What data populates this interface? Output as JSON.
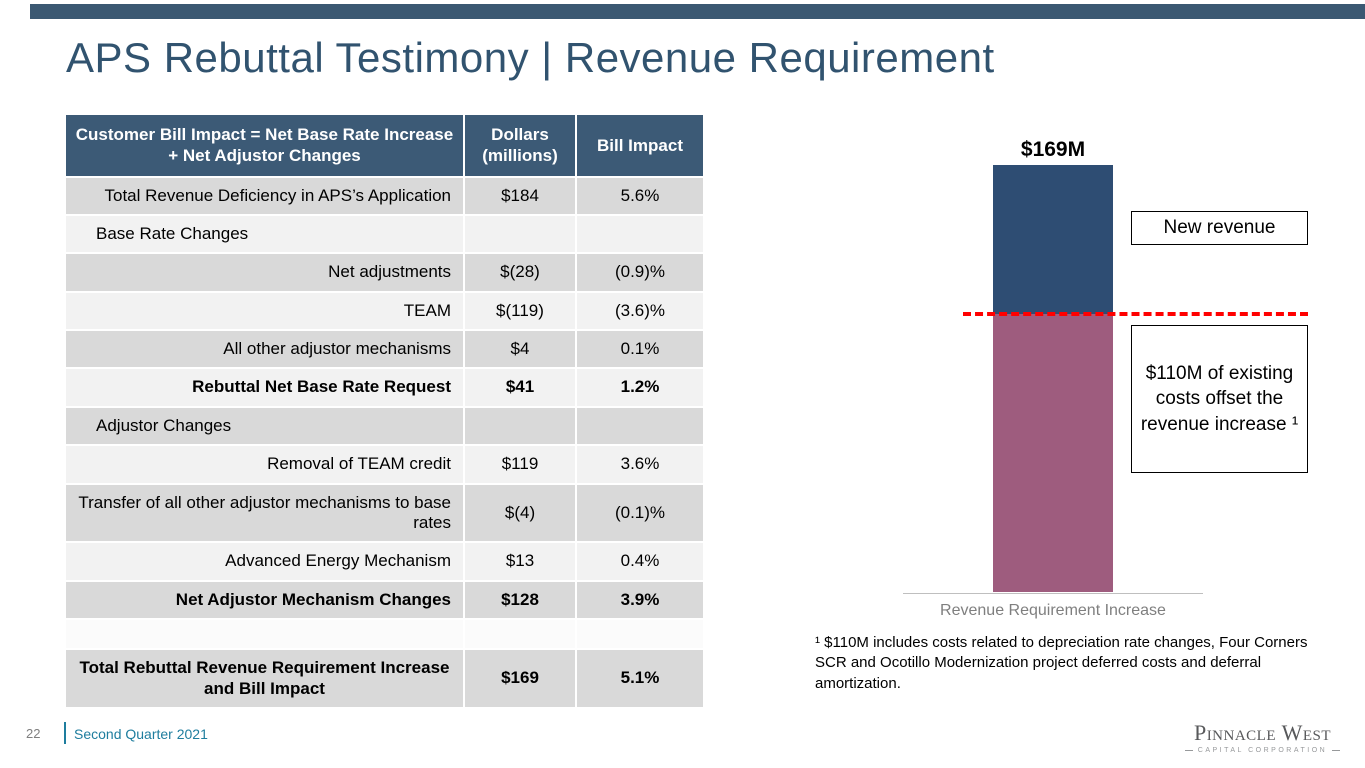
{
  "slide": {
    "title": "APS Rebuttal Testimony | Revenue Requirement"
  },
  "table": {
    "header": {
      "col1": "Customer Bill Impact = Net Base Rate Increase + Net Adjustor Changes",
      "col2": "Dollars (millions)",
      "col3": "Bill Impact"
    },
    "rows": [
      {
        "label": "Total Revenue Deficiency in APS’s Application",
        "dollars": "$184",
        "impact": "5.6%"
      },
      {
        "label": "Base Rate Changes",
        "dollars": "",
        "impact": ""
      },
      {
        "label": "Net adjustments",
        "dollars": "$(28)",
        "impact": "(0.9)%"
      },
      {
        "label": "TEAM",
        "dollars": "$(119)",
        "impact": "(3.6)%"
      },
      {
        "label": "All other adjustor mechanisms",
        "dollars": "$4",
        "impact": "0.1%"
      },
      {
        "label": "Rebuttal Net Base Rate Request",
        "dollars": "$41",
        "impact": "1.2%"
      },
      {
        "label": "Adjustor Changes",
        "dollars": "",
        "impact": ""
      },
      {
        "label": "Removal of TEAM credit",
        "dollars": "$119",
        "impact": "3.6%"
      },
      {
        "label": "Transfer of all other adjustor mechanisms to base rates",
        "dollars": "$(4)",
        "impact": "(0.1)%"
      },
      {
        "label": "Advanced Energy Mechanism",
        "dollars": "$13",
        "impact": "0.4%"
      },
      {
        "label": "Net Adjustor Mechanism Changes",
        "dollars": "$128",
        "impact": "3.9%"
      },
      {
        "label": "",
        "dollars": "",
        "impact": ""
      },
      {
        "label": "Total Rebuttal Revenue Requirement Increase and Bill Impact",
        "dollars": "$169",
        "impact": "5.1%"
      }
    ]
  },
  "chart": {
    "total_label": "$169M",
    "new_revenue_label": "New revenue",
    "existing_costs_label": "$110M of existing costs offset the revenue increase ¹",
    "axis_label": "Revenue Requirement Increase",
    "footnote": "¹ $110M includes costs related to depreciation rate changes, Four Corners SCR and Ocotillo Modernization project deferred costs and deferral amortization."
  },
  "chart_data": {
    "type": "bar",
    "stacked": true,
    "categories": [
      "Revenue Requirement Increase"
    ],
    "series": [
      {
        "name": "New revenue",
        "values": [
          59
        ],
        "color": "#2E4D73"
      },
      {
        "name": "$110M of existing costs offset the revenue increase",
        "values": [
          110
        ],
        "color": "#9E5C7E"
      }
    ],
    "total": 169,
    "total_label": "$169M",
    "ylim": [
      0,
      169
    ],
    "annotations": [
      "$169M",
      "New revenue",
      "$110M of existing costs offset the revenue increase ¹"
    ],
    "dashed_line_value": 110,
    "dashed_line_color": "#FF0000"
  },
  "footer": {
    "page_number": "22",
    "subtitle": "Second Quarter 2021",
    "logo_name": "Pinnacle West",
    "logo_subtext": "CAPITAL CORPORATION"
  }
}
